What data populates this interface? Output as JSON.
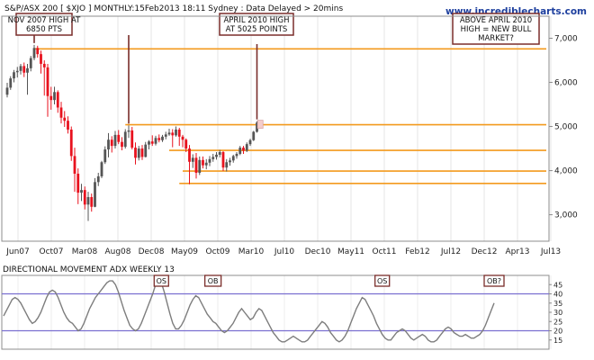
{
  "chart_data": [
    {
      "type": "candlestick",
      "title": "S&P/ASX 200 [ $XJO ] MONTHLY:15Feb2013 18:11 Sydney : Data Delayed > 20mins",
      "watermark": "www.incrediblecharts.com",
      "x_labels": [
        "Jun07",
        "Oct07",
        "Mar08",
        "Aug08",
        "Dec08",
        "May09",
        "Oct09",
        "Mar10",
        "Jul10",
        "Dec10",
        "May11",
        "Oct11",
        "Feb12",
        "Jul12",
        "Dec12",
        "Apr13",
        "Jul13"
      ],
      "y_ticks": [
        "3,000",
        "4,000",
        "5,000",
        "6,000",
        "7,000"
      ],
      "ylim": [
        2400,
        7500
      ],
      "up_color": "#555555",
      "down_color": "#e8121e",
      "candles": [
        {
          "o": 5720,
          "h": 5990,
          "l": 5660,
          "c": 5880
        },
        {
          "o": 5880,
          "h": 6140,
          "l": 5830,
          "c": 6090
        },
        {
          "o": 6090,
          "h": 6280,
          "l": 6000,
          "c": 6230
        },
        {
          "o": 6230,
          "h": 6350,
          "l": 6110,
          "c": 6260
        },
        {
          "o": 6260,
          "h": 6420,
          "l": 6180,
          "c": 6370
        },
        {
          "o": 6370,
          "h": 6450,
          "l": 6120,
          "c": 6220
        },
        {
          "o": 6220,
          "h": 6420,
          "l": 5720,
          "c": 6320
        },
        {
          "o": 6320,
          "h": 6600,
          "l": 6250,
          "c": 6550
        },
        {
          "o": 6550,
          "h": 6850,
          "l": 6500,
          "c": 6780
        },
        {
          "o": 6780,
          "h": 6830,
          "l": 6560,
          "c": 6640
        },
        {
          "o": 6640,
          "h": 6720,
          "l": 6200,
          "c": 6420
        },
        {
          "o": 6420,
          "h": 6500,
          "l": 5700,
          "c": 6340
        },
        {
          "o": 6340,
          "h": 6420,
          "l": 5220,
          "c": 5690
        },
        {
          "o": 5690,
          "h": 5900,
          "l": 5380,
          "c": 5600
        },
        {
          "o": 5600,
          "h": 5900,
          "l": 5500,
          "c": 5780
        },
        {
          "o": 5780,
          "h": 5820,
          "l": 5310,
          "c": 5430
        },
        {
          "o": 5430,
          "h": 5560,
          "l": 5070,
          "c": 5200
        },
        {
          "o": 5200,
          "h": 5350,
          "l": 4990,
          "c": 5130
        },
        {
          "o": 5130,
          "h": 5230,
          "l": 4840,
          "c": 4930
        },
        {
          "o": 4930,
          "h": 5000,
          "l": 4220,
          "c": 4330
        },
        {
          "o": 4330,
          "h": 4520,
          "l": 3520,
          "c": 3930
        },
        {
          "o": 3930,
          "h": 4050,
          "l": 3240,
          "c": 3500
        },
        {
          "o": 3500,
          "h": 3700,
          "l": 3310,
          "c": 3560
        },
        {
          "o": 3560,
          "h": 3640,
          "l": 3120,
          "c": 3230
        },
        {
          "o": 3230,
          "h": 3520,
          "l": 2860,
          "c": 3400
        },
        {
          "o": 3400,
          "h": 3480,
          "l": 3070,
          "c": 3180
        },
        {
          "o": 3180,
          "h": 3830,
          "l": 3170,
          "c": 3740
        },
        {
          "o": 3740,
          "h": 3950,
          "l": 3650,
          "c": 3870
        },
        {
          "o": 3870,
          "h": 4220,
          "l": 3830,
          "c": 4190
        },
        {
          "o": 4190,
          "h": 4550,
          "l": 4150,
          "c": 4480
        },
        {
          "o": 4480,
          "h": 4850,
          "l": 4300,
          "c": 4700
        },
        {
          "o": 4700,
          "h": 4780,
          "l": 4410,
          "c": 4560
        },
        {
          "o": 4560,
          "h": 4900,
          "l": 4500,
          "c": 4810
        },
        {
          "o": 4810,
          "h": 4920,
          "l": 4600,
          "c": 4650
        },
        {
          "o": 4650,
          "h": 4760,
          "l": 4460,
          "c": 4540
        },
        {
          "o": 4540,
          "h": 4940,
          "l": 4500,
          "c": 4880
        },
        {
          "o": 4880,
          "h": 5025,
          "l": 4740,
          "c": 4910
        },
        {
          "o": 4910,
          "h": 4990,
          "l": 4480,
          "c": 4520
        },
        {
          "o": 4520,
          "h": 4640,
          "l": 4140,
          "c": 4290
        },
        {
          "o": 4290,
          "h": 4560,
          "l": 4230,
          "c": 4500
        },
        {
          "o": 4500,
          "h": 4580,
          "l": 4240,
          "c": 4310
        },
        {
          "o": 4310,
          "h": 4650,
          "l": 4300,
          "c": 4590
        },
        {
          "o": 4590,
          "h": 4690,
          "l": 4480,
          "c": 4660
        },
        {
          "o": 4660,
          "h": 4800,
          "l": 4560,
          "c": 4610
        },
        {
          "o": 4610,
          "h": 4790,
          "l": 4570,
          "c": 4740
        },
        {
          "o": 4740,
          "h": 4820,
          "l": 4640,
          "c": 4690
        },
        {
          "o": 4690,
          "h": 4810,
          "l": 4650,
          "c": 4770
        },
        {
          "o": 4770,
          "h": 4880,
          "l": 4710,
          "c": 4820
        },
        {
          "o": 4820,
          "h": 4950,
          "l": 4790,
          "c": 4860
        },
        {
          "o": 4860,
          "h": 4940,
          "l": 4530,
          "c": 4800
        },
        {
          "o": 4800,
          "h": 5000,
          "l": 4770,
          "c": 4930
        },
        {
          "o": 4930,
          "h": 4970,
          "l": 4560,
          "c": 4770
        },
        {
          "o": 4770,
          "h": 4810,
          "l": 4530,
          "c": 4700
        },
        {
          "o": 4700,
          "h": 4730,
          "l": 4420,
          "c": 4500
        },
        {
          "o": 4500,
          "h": 4580,
          "l": 3690,
          "c": 4200
        },
        {
          "o": 4200,
          "h": 4370,
          "l": 4060,
          "c": 4290
        },
        {
          "o": 4290,
          "h": 4400,
          "l": 3820,
          "c": 3950
        },
        {
          "o": 3950,
          "h": 4320,
          "l": 3900,
          "c": 4240
        },
        {
          "o": 4240,
          "h": 4320,
          "l": 4050,
          "c": 4120
        },
        {
          "o": 4120,
          "h": 4260,
          "l": 4030,
          "c": 4180
        },
        {
          "o": 4180,
          "h": 4330,
          "l": 4100,
          "c": 4260
        },
        {
          "o": 4260,
          "h": 4380,
          "l": 4200,
          "c": 4310
        },
        {
          "o": 4310,
          "h": 4420,
          "l": 4250,
          "c": 4360
        },
        {
          "o": 4360,
          "h": 4470,
          "l": 4300,
          "c": 4420
        },
        {
          "o": 4420,
          "h": 4440,
          "l": 3990,
          "c": 4070
        },
        {
          "o": 4070,
          "h": 4260,
          "l": 3980,
          "c": 4190
        },
        {
          "o": 4190,
          "h": 4290,
          "l": 4110,
          "c": 4230
        },
        {
          "o": 4230,
          "h": 4360,
          "l": 4180,
          "c": 4330
        },
        {
          "o": 4330,
          "h": 4420,
          "l": 4270,
          "c": 4380
        },
        {
          "o": 4380,
          "h": 4560,
          "l": 4350,
          "c": 4520
        },
        {
          "o": 4520,
          "h": 4560,
          "l": 4380,
          "c": 4450
        },
        {
          "o": 4450,
          "h": 4640,
          "l": 4420,
          "c": 4600
        },
        {
          "o": 4600,
          "h": 4720,
          "l": 4560,
          "c": 4690
        },
        {
          "o": 4690,
          "h": 4900,
          "l": 4670,
          "c": 4880
        },
        {
          "o": 4880,
          "h": 5120,
          "l": 4860,
          "c": 5090
        }
      ],
      "horizontal_lines": [
        {
          "y": 6760,
          "start": 8,
          "color": "#f39a1d"
        },
        {
          "y": 5040,
          "start": 35,
          "color": "#f39a1d"
        },
        {
          "y": 4460,
          "start": 48,
          "color": "#f39a1d"
        },
        {
          "y": 3990,
          "start": 52,
          "color": "#f39a1d"
        },
        {
          "y": 3710,
          "start": 51,
          "color": "#f39a1d"
        }
      ],
      "annotations": [
        {
          "lines": [
            "NOV 2007 HIGH AT",
            "6850 PTS"
          ],
          "candle": 8
        },
        {
          "lines": [
            "APRIL 2010 HIGH",
            "AT 5025 POINTS"
          ],
          "candle": 36
        },
        {
          "lines": [
            "ABOVE APRIL 2010",
            "HIGH = NEW BULL",
            "MARKET?"
          ],
          "candle": 74
        }
      ],
      "target_marker": {
        "candle": 75,
        "value": 5040,
        "color": "#f4cccc"
      }
    },
    {
      "type": "line",
      "title": "DIRECTIONAL MOVEMENT ADX WEEKLY 13",
      "y_ticks": [
        "15",
        "20",
        "25",
        "30",
        "35",
        "40",
        "45"
      ],
      "ylim": [
        10,
        50
      ],
      "reference_lines": [
        20,
        40
      ],
      "reference_color": "#7a6fd0",
      "line_color": "#7d7d7d",
      "markers": [
        {
          "label": "OS",
          "x": 55
        },
        {
          "label": "OB",
          "x": 73
        },
        {
          "label": "OS",
          "x": 132
        },
        {
          "label": "OB?",
          "x": 171
        }
      ],
      "values": [
        28,
        31,
        34,
        37,
        38,
        37,
        35,
        32,
        29,
        26,
        24,
        25,
        27,
        30,
        34,
        38,
        41,
        42,
        41,
        38,
        34,
        30,
        27,
        25,
        24,
        22,
        20,
        21,
        24,
        28,
        32,
        35,
        38,
        40,
        42,
        44,
        46,
        47,
        47,
        45,
        41,
        36,
        31,
        27,
        23,
        21,
        20,
        21,
        24,
        28,
        32,
        36,
        40,
        45,
        48,
        46,
        41,
        35,
        29,
        24,
        21,
        21,
        23,
        26,
        30,
        34,
        37,
        39,
        38,
        35,
        32,
        29,
        27,
        25,
        24,
        22,
        20,
        19,
        20,
        22,
        24,
        27,
        30,
        32,
        30,
        28,
        26,
        27,
        30,
        32,
        31,
        28,
        25,
        22,
        19,
        17,
        15,
        14,
        14,
        15,
        16,
        17,
        16,
        15,
        14,
        14,
        15,
        17,
        19,
        21,
        23,
        25,
        24,
        22,
        19,
        17,
        15,
        14,
        15,
        17,
        20,
        24,
        28,
        32,
        35,
        38,
        37,
        34,
        31,
        28,
        24,
        21,
        18,
        16,
        15,
        15,
        17,
        19,
        20,
        21,
        20,
        18,
        16,
        15,
        16,
        17,
        18,
        17,
        15,
        14,
        14,
        15,
        17,
        19,
        21,
        22,
        21,
        19,
        18,
        17,
        17,
        18,
        17,
        16,
        16,
        17,
        18,
        20,
        23,
        27,
        31,
        35
      ]
    }
  ]
}
